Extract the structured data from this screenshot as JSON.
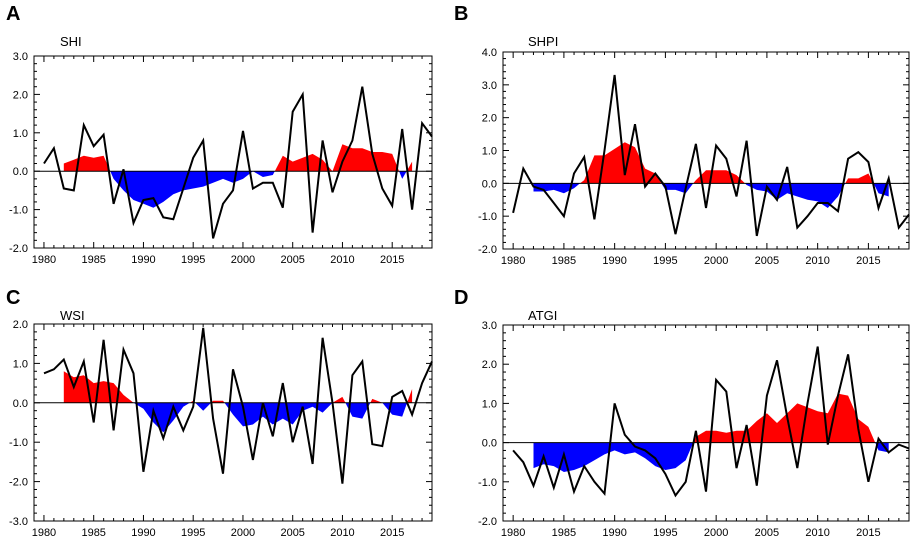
{
  "figure": {
    "description_key": "four-panel index time series"
  },
  "colors": {
    "positive": "#ff0000",
    "negative": "#0000ff",
    "line": "#000000"
  },
  "chart_data": [
    {
      "panel": "A",
      "title": "SHI",
      "type": "line",
      "ylim": [
        -2.0,
        3.0
      ],
      "yticks": [
        -2.0,
        -1.0,
        0.0,
        1.0,
        2.0,
        3.0
      ],
      "ytick_labels": [
        "-2.0",
        "-1.0",
        "0.0",
        "1.0",
        "2.0",
        "3.0"
      ],
      "xlim": [
        1979,
        2019
      ],
      "xticks": [
        1980,
        1985,
        1990,
        1995,
        2000,
        2005,
        2010,
        2015
      ],
      "xtick_labels": [
        "1980",
        "1985",
        "1990",
        "1995",
        "2000",
        "2005",
        "2010",
        "2015"
      ],
      "line_x": [
        1980,
        1981,
        1982,
        1983,
        1984,
        1985,
        1986,
        1987,
        1988,
        1989,
        1990,
        1991,
        1992,
        1993,
        1994,
        1995,
        1996,
        1997,
        1998,
        1999,
        2000,
        2001,
        2002,
        2003,
        2004,
        2005,
        2006,
        2007,
        2008,
        2009,
        2010,
        2011,
        2012,
        2013,
        2014,
        2015,
        2016,
        2017,
        2018,
        2019
      ],
      "line_y": [
        0.2,
        0.6,
        -0.45,
        -0.5,
        1.2,
        0.65,
        0.95,
        -0.85,
        0.05,
        -1.35,
        -0.75,
        -0.7,
        -1.2,
        -1.25,
        -0.45,
        0.35,
        0.8,
        -1.75,
        -0.85,
        -0.5,
        1.05,
        -0.45,
        -0.3,
        -0.3,
        -0.95,
        1.55,
        2.0,
        -1.6,
        0.8,
        -0.55,
        0.25,
        0.8,
        2.2,
        0.45,
        -0.45,
        -0.9,
        1.1,
        -1.0,
        1.25,
        0.9
      ],
      "fill_x": [
        1982,
        1983,
        1984,
        1985,
        1986,
        1987,
        1988,
        1989,
        1990,
        1991,
        1992,
        1993,
        1994,
        1995,
        1996,
        1997,
        1998,
        1999,
        2000,
        2001,
        2002,
        2003,
        2004,
        2005,
        2006,
        2007,
        2008,
        2009,
        2010,
        2011,
        2012,
        2013,
        2014,
        2015,
        2016,
        2017
      ],
      "fill_y": [
        0.2,
        0.3,
        0.4,
        0.35,
        0.4,
        -0.2,
        -0.5,
        -0.75,
        -0.85,
        -0.95,
        -0.8,
        -0.6,
        -0.5,
        -0.45,
        -0.4,
        -0.3,
        -0.2,
        -0.3,
        -0.2,
        0.0,
        -0.15,
        -0.1,
        0.4,
        0.25,
        0.35,
        0.45,
        0.3,
        0.0,
        0.7,
        0.6,
        0.6,
        0.5,
        0.5,
        0.45,
        -0.2,
        0.25
      ]
    },
    {
      "panel": "B",
      "title": "SHPI",
      "type": "line",
      "ylim": [
        -2.0,
        4.0
      ],
      "yticks": [
        -2.0,
        -1.0,
        0.0,
        1.0,
        2.0,
        3.0,
        4.0
      ],
      "ytick_labels": [
        "-2.0",
        "-1.0",
        "0.0",
        "1.0",
        "2.0",
        "3.0",
        "4.0"
      ],
      "xlim": [
        1979,
        2019
      ],
      "xticks": [
        1980,
        1985,
        1990,
        1995,
        2000,
        2005,
        2010,
        2015
      ],
      "xtick_labels": [
        "1980",
        "1985",
        "1990",
        "1995",
        "2000",
        "2005",
        "2010",
        "2015"
      ],
      "line_x": [
        1980,
        1981,
        1982,
        1983,
        1984,
        1985,
        1986,
        1987,
        1988,
        1989,
        1990,
        1991,
        1992,
        1993,
        1994,
        1995,
        1996,
        1997,
        1998,
        1999,
        2000,
        2001,
        2002,
        2003,
        2004,
        2005,
        2006,
        2007,
        2008,
        2009,
        2010,
        2011,
        2012,
        2013,
        2014,
        2015,
        2016,
        2017,
        2018,
        2019
      ],
      "line_y": [
        -0.9,
        0.45,
        -0.1,
        -0.2,
        -0.6,
        -1.0,
        0.3,
        0.8,
        -1.1,
        1.0,
        3.3,
        0.25,
        1.8,
        -0.1,
        0.3,
        -0.1,
        -1.55,
        -0.15,
        1.2,
        -0.75,
        1.15,
        0.75,
        -0.4,
        1.3,
        -1.6,
        -0.1,
        -0.5,
        0.5,
        -1.35,
        -1.0,
        -0.6,
        -0.6,
        -0.85,
        0.75,
        0.95,
        0.65,
        -0.75,
        0.15,
        -1.35,
        -0.95
      ],
      "fill_x": [
        1982,
        1983,
        1984,
        1985,
        1986,
        1987,
        1988,
        1989,
        1990,
        1991,
        1992,
        1993,
        1994,
        1995,
        1996,
        1997,
        1998,
        1999,
        2000,
        2001,
        2002,
        2003,
        2004,
        2005,
        2006,
        2007,
        2008,
        2009,
        2010,
        2011,
        2012,
        2013,
        2014,
        2015,
        2016,
        2017
      ],
      "fill_y": [
        -0.25,
        -0.25,
        -0.2,
        -0.3,
        -0.15,
        0.1,
        0.85,
        0.85,
        1.05,
        1.25,
        1.1,
        0.45,
        0.3,
        -0.2,
        -0.2,
        -0.3,
        0.1,
        0.4,
        0.4,
        0.4,
        0.25,
        -0.05,
        -0.2,
        -0.25,
        -0.5,
        -0.3,
        -0.4,
        -0.5,
        -0.55,
        -0.75,
        -0.4,
        0.15,
        0.15,
        0.3,
        -0.3,
        -0.4
      ]
    },
    {
      "panel": "C",
      "title": "WSI",
      "type": "line",
      "ylim": [
        -3.0,
        2.0
      ],
      "yticks": [
        -3.0,
        -2.0,
        -1.0,
        0.0,
        1.0,
        2.0
      ],
      "ytick_labels": [
        "-3.0",
        "-2.0",
        "-1.0",
        "0.0",
        "1.0",
        "2.0"
      ],
      "xlim": [
        1979,
        2019
      ],
      "xticks": [
        1980,
        1985,
        1990,
        1995,
        2000,
        2005,
        2010,
        2015
      ],
      "xtick_labels": [
        "1980",
        "1985",
        "1990",
        "1995",
        "2000",
        "2005",
        "2010",
        "2015"
      ],
      "line_x": [
        1980,
        1981,
        1982,
        1983,
        1984,
        1985,
        1986,
        1987,
        1988,
        1989,
        1990,
        1991,
        1992,
        1993,
        1994,
        1995,
        1996,
        1997,
        1998,
        1999,
        2000,
        2001,
        2002,
        2003,
        2004,
        2005,
        2006,
        2007,
        2008,
        2009,
        2010,
        2011,
        2012,
        2013,
        2014,
        2015,
        2016,
        2017,
        2018,
        2019
      ],
      "line_y": [
        0.75,
        0.85,
        1.1,
        0.4,
        1.05,
        -0.5,
        1.6,
        -0.7,
        1.35,
        0.75,
        -1.75,
        -0.2,
        -0.9,
        -0.1,
        -0.7,
        -0.1,
        1.9,
        -0.4,
        -1.8,
        0.85,
        -0.1,
        -1.45,
        0.0,
        -0.85,
        0.5,
        -1.0,
        -0.1,
        -1.55,
        1.65,
        0.0,
        -2.05,
        0.7,
        1.05,
        -1.05,
        -1.1,
        0.15,
        0.3,
        -0.3,
        0.5,
        1.05
      ],
      "fill_x": [
        1982,
        1983,
        1984,
        1985,
        1986,
        1987,
        1988,
        1989,
        1990,
        1991,
        1992,
        1993,
        1994,
        1995,
        1996,
        1997,
        1998,
        1999,
        2000,
        2001,
        2002,
        2003,
        2004,
        2005,
        2006,
        2007,
        2008,
        2009,
        2010,
        2011,
        2012,
        2013,
        2014,
        2015,
        2016,
        2017
      ],
      "fill_y": [
        0.8,
        0.65,
        0.7,
        0.5,
        0.55,
        0.5,
        0.2,
        0.0,
        -0.15,
        -0.5,
        -0.75,
        -0.45,
        -0.1,
        0.05,
        -0.2,
        0.05,
        0.05,
        -0.3,
        -0.6,
        -0.55,
        -0.35,
        -0.55,
        -0.4,
        -0.55,
        -0.2,
        -0.1,
        -0.25,
        0.0,
        0.15,
        -0.35,
        -0.4,
        0.1,
        0.0,
        -0.3,
        -0.35,
        0.35
      ]
    },
    {
      "panel": "D",
      "title": "ATGI",
      "type": "line",
      "ylim": [
        -2.0,
        3.0
      ],
      "yticks": [
        -2.0,
        -1.0,
        0.0,
        1.0,
        2.0,
        3.0
      ],
      "ytick_labels": [
        "-2.0",
        "-1.0",
        "0.0",
        "1.0",
        "2.0",
        "3.0"
      ],
      "xlim": [
        1979,
        2019
      ],
      "xticks": [
        1980,
        1985,
        1990,
        1995,
        2000,
        2005,
        2010,
        2015
      ],
      "xtick_labels": [
        "1980",
        "1985",
        "1990",
        "1995",
        "2000",
        "2005",
        "2010",
        "2015"
      ],
      "line_x": [
        1980,
        1981,
        1982,
        1983,
        1984,
        1985,
        1986,
        1987,
        1988,
        1989,
        1990,
        1991,
        1992,
        1993,
        1994,
        1995,
        1996,
        1997,
        1998,
        1999,
        2000,
        2001,
        2002,
        2003,
        2004,
        2005,
        2006,
        2007,
        2008,
        2009,
        2010,
        2011,
        2012,
        2013,
        2014,
        2015,
        2016,
        2017,
        2018,
        2019
      ],
      "line_y": [
        -0.2,
        -0.5,
        -1.1,
        -0.35,
        -1.15,
        -0.3,
        -1.25,
        -0.6,
        -1.0,
        -1.3,
        1.0,
        0.2,
        -0.1,
        -0.2,
        -0.4,
        -0.8,
        -1.35,
        -1.0,
        0.3,
        -1.25,
        1.6,
        1.3,
        -0.65,
        0.45,
        -1.1,
        1.2,
        2.1,
        0.65,
        -0.65,
        1.0,
        2.45,
        -0.05,
        1.2,
        2.25,
        0.35,
        -1.0,
        0.1,
        -0.25,
        -0.05,
        -0.15
      ],
      "fill_x": [
        1982,
        1983,
        1984,
        1985,
        1986,
        1987,
        1988,
        1989,
        1990,
        1991,
        1992,
        1993,
        1994,
        1995,
        1996,
        1997,
        1998,
        1999,
        2000,
        2001,
        2002,
        2003,
        2004,
        2005,
        2006,
        2007,
        2008,
        2009,
        2010,
        2011,
        2012,
        2013,
        2014,
        2015,
        2016,
        2017
      ],
      "fill_y": [
        -0.65,
        -0.55,
        -0.6,
        -0.75,
        -0.7,
        -0.6,
        -0.45,
        -0.3,
        -0.2,
        -0.3,
        -0.25,
        -0.4,
        -0.6,
        -0.7,
        -0.65,
        -0.45,
        0.15,
        0.3,
        0.3,
        0.25,
        0.3,
        0.3,
        0.55,
        0.75,
        0.5,
        0.75,
        1.0,
        0.9,
        0.8,
        0.75,
        1.25,
        1.2,
        0.6,
        0.4,
        -0.2,
        -0.25
      ]
    }
  ]
}
